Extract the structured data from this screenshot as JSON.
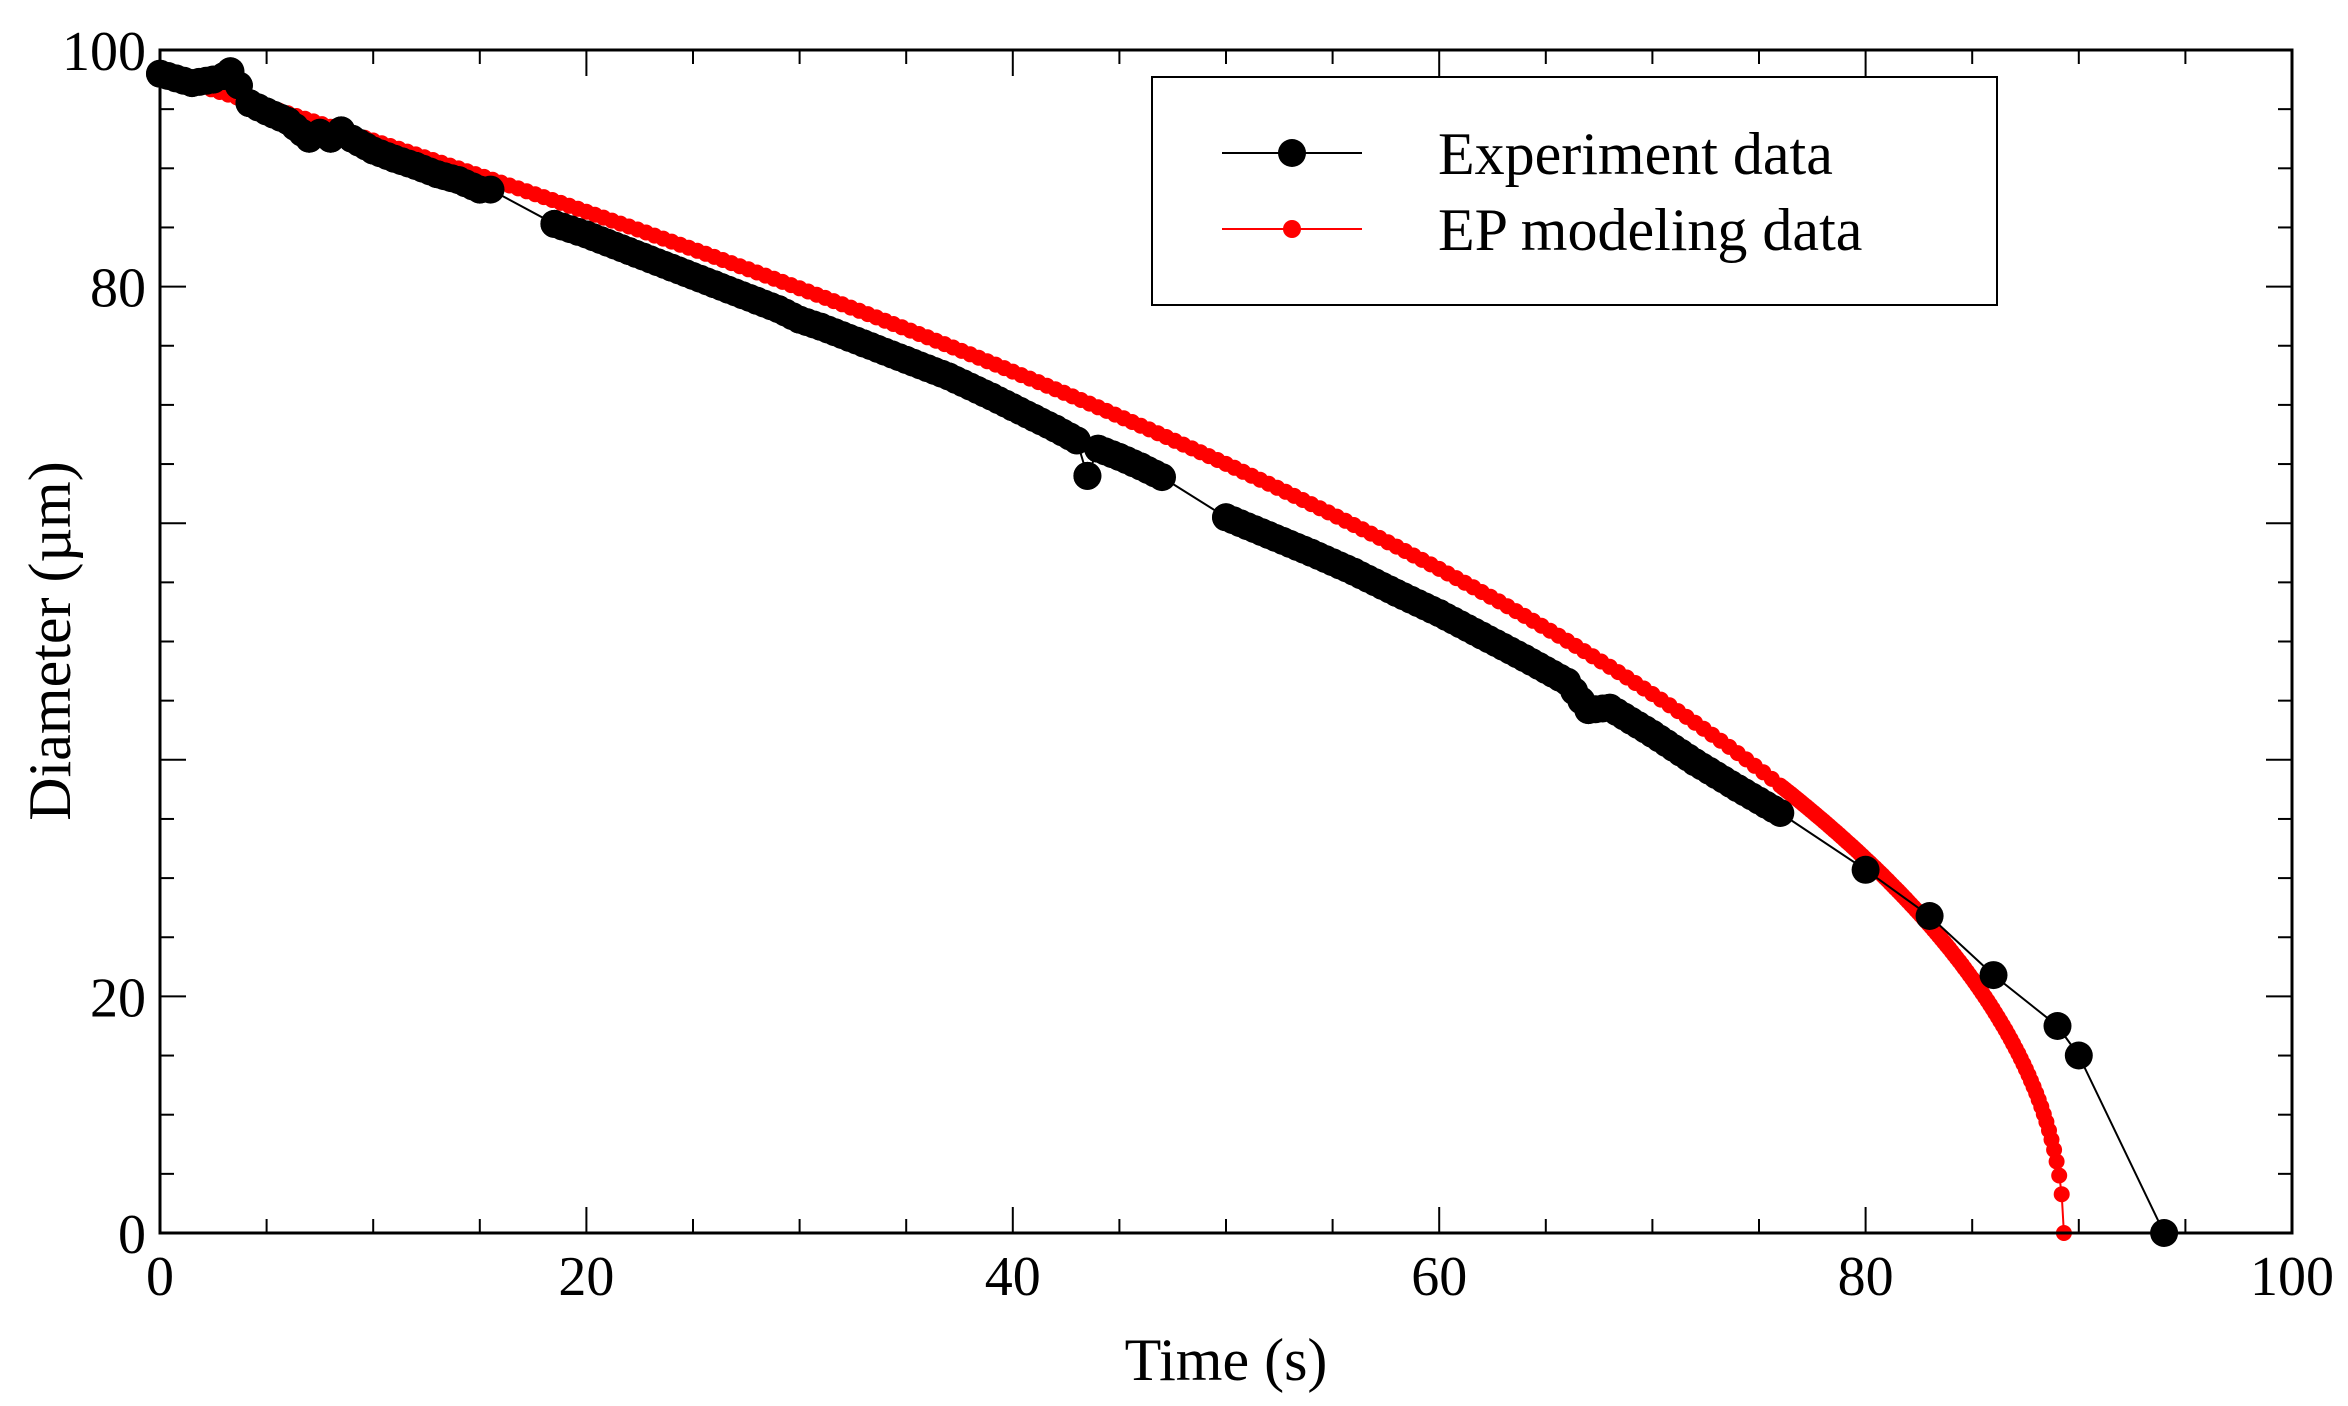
{
  "chart_data": {
    "type": "scatter",
    "title": "",
    "xlabel": "Time (s)",
    "ylabel": "Diameter (µm)",
    "xlim": [
      0,
      100
    ],
    "ylim": [
      0,
      100
    ],
    "grid": false,
    "legend_position": "top-right",
    "x_ticks": [
      0,
      20,
      40,
      60,
      80,
      100
    ],
    "x_tick_labels": [
      "0",
      "20",
      "40",
      "60",
      "80",
      "100"
    ],
    "y_ticks": [
      0,
      20,
      80,
      100
    ],
    "y_tick_labels": [
      "0",
      "20",
      "80",
      "100"
    ],
    "series": [
      {
        "name": "Experiment data",
        "color": "#000000",
        "marker": "large-circle",
        "line": true,
        "x": [
          0,
          1.5,
          2.5,
          3.0,
          3.3,
          3.7,
          4.2,
          5,
          6,
          7,
          7.5,
          8,
          8.5,
          9,
          10,
          11,
          12,
          13,
          14,
          15,
          15.5,
          18.5,
          20,
          22,
          24,
          26,
          28,
          29,
          30,
          31,
          33,
          35,
          37,
          39,
          40,
          41,
          42,
          43,
          43.5,
          44,
          45,
          46,
          47,
          50,
          52,
          54,
          56,
          58,
          60,
          62,
          64,
          66,
          67,
          68,
          70,
          72,
          74,
          76,
          80,
          83,
          86,
          89,
          90,
          94
        ],
        "y": [
          98,
          97.2,
          97.5,
          97.8,
          98.2,
          97,
          95.5,
          94.8,
          94,
          92.5,
          93,
          92.5,
          93.2,
          92.5,
          91.5,
          90.8,
          90.2,
          89.5,
          89,
          88.2,
          88.2,
          85.3,
          84.4,
          83,
          81.6,
          80.2,
          78.8,
          78.1,
          77.2,
          76.6,
          75.2,
          73.8,
          72.4,
          70.7,
          69.8,
          68.9,
          68,
          67,
          64,
          66.3,
          65.6,
          64.8,
          63.9,
          60.5,
          59,
          57.5,
          55.9,
          54.1,
          52.4,
          50.5,
          48.6,
          46.6,
          44.2,
          44.4,
          42.2,
          39.8,
          37.6,
          35.5,
          30.7,
          26.8,
          21.8,
          17.5,
          15.0,
          0
        ],
        "values_note": "values read approximately from axes"
      },
      {
        "name": "EP modeling data",
        "color": "#ff0000",
        "marker": "small-circle",
        "line": true,
        "model": "d = d0 * sqrt(1 - t / t_end)",
        "d0": 98,
        "t_end": 89.3,
        "sample_step_s": 0.4,
        "dense_from_s": 76,
        "dense_step_s": 0.12
      }
    ]
  }
}
